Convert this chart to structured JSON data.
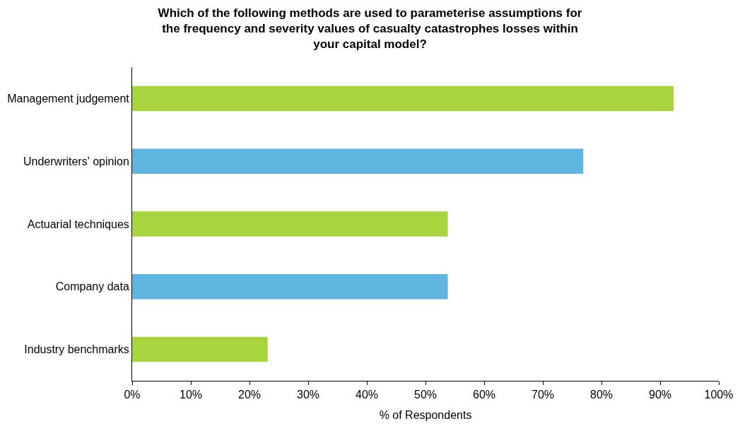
{
  "chart_data": {
    "type": "bar",
    "orientation": "horizontal",
    "title": "Which of the following methods are used to parameterise assumptions for\nthe frequency and severity values of casualty catastrophes losses within\nyour capital model?",
    "xlabel": "% of Respondents",
    "categories": [
      "Management judgement",
      "Underwriters' opinion",
      "Actuarial techniques",
      "Company data",
      "Industry benchmarks"
    ],
    "values": [
      92.3,
      76.9,
      53.8,
      53.8,
      23.1
    ],
    "colors": [
      "#a8d43e",
      "#5fb6de",
      "#a8d43e",
      "#5fb6de",
      "#a8d43e"
    ],
    "xlim": [
      0,
      100
    ],
    "xticks": [
      {
        "value": 0,
        "label": "0%"
      },
      {
        "value": 10,
        "label": "10%"
      },
      {
        "value": 20,
        "label": "20%"
      },
      {
        "value": 30,
        "label": "30%"
      },
      {
        "value": 40,
        "label": "40%"
      },
      {
        "value": 50,
        "label": "50%"
      },
      {
        "value": 60,
        "label": "60%"
      },
      {
        "value": 70,
        "label": "70%"
      },
      {
        "value": 80,
        "label": "80%"
      },
      {
        "value": 90,
        "label": "90%"
      },
      {
        "value": 100,
        "label": "100%"
      }
    ],
    "grid": false
  }
}
